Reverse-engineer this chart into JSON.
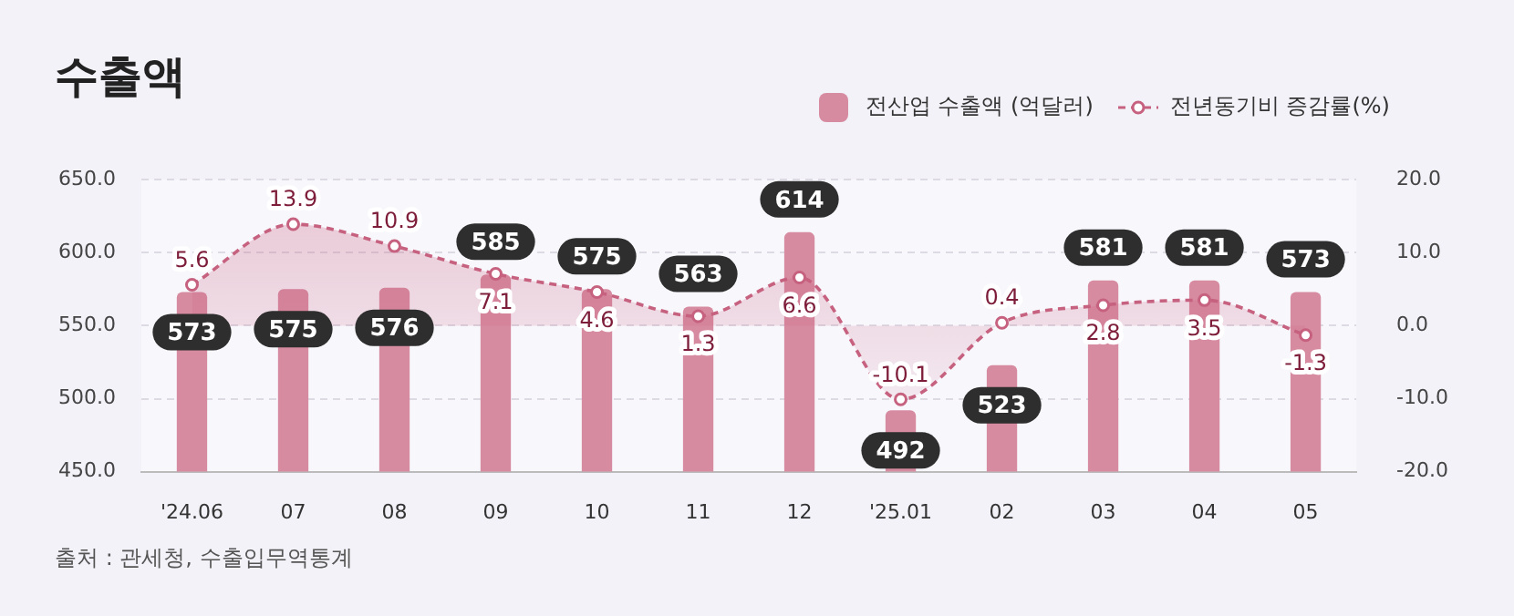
{
  "chart_data": {
    "type": "bar",
    "title": "수출액",
    "categories": [
      "'24.06",
      "07",
      "08",
      "09",
      "10",
      "11",
      "12",
      "'25.01",
      "02",
      "03",
      "04",
      "05"
    ],
    "series": [
      {
        "name": "전산업 수출액 (억달러)",
        "color": "#d78ba1",
        "values": [
          573,
          575,
          576,
          585,
          575,
          563,
          614,
          492,
          523,
          581,
          581,
          573
        ]
      },
      {
        "name": "전년동기비 증감률(%)",
        "type": "area",
        "axis": "y2",
        "color": "#c6617f",
        "line_style": "dashed",
        "marker": "circle",
        "values": [
          5.6,
          13.9,
          10.9,
          7.1,
          4.6,
          1.3,
          6.6,
          -10.1,
          0.4,
          2.8,
          3.5,
          -1.3
        ]
      }
    ],
    "ylim": [
      450,
      650
    ],
    "yticks": [
      {
        "value": 450,
        "label": "450.0"
      },
      {
        "value": 500,
        "label": "500.0"
      },
      {
        "value": 550,
        "label": "550.0"
      },
      {
        "value": 600,
        "label": "600.0"
      },
      {
        "value": 650,
        "label": "650.0"
      }
    ],
    "y2lim": [
      -20,
      20
    ],
    "y2ticks": [
      {
        "value": -20,
        "label": "-20.0"
      },
      {
        "value": -10,
        "label": "-10.0"
      },
      {
        "value": 0,
        "label": "0.0"
      },
      {
        "value": 10,
        "label": "10.0"
      },
      {
        "value": 20,
        "label": "20.0"
      }
    ],
    "grid": "y",
    "legend": "top right",
    "data_labels": true,
    "annotations": [
      "출처 : 관세청, 수출입무역통계"
    ]
  }
}
